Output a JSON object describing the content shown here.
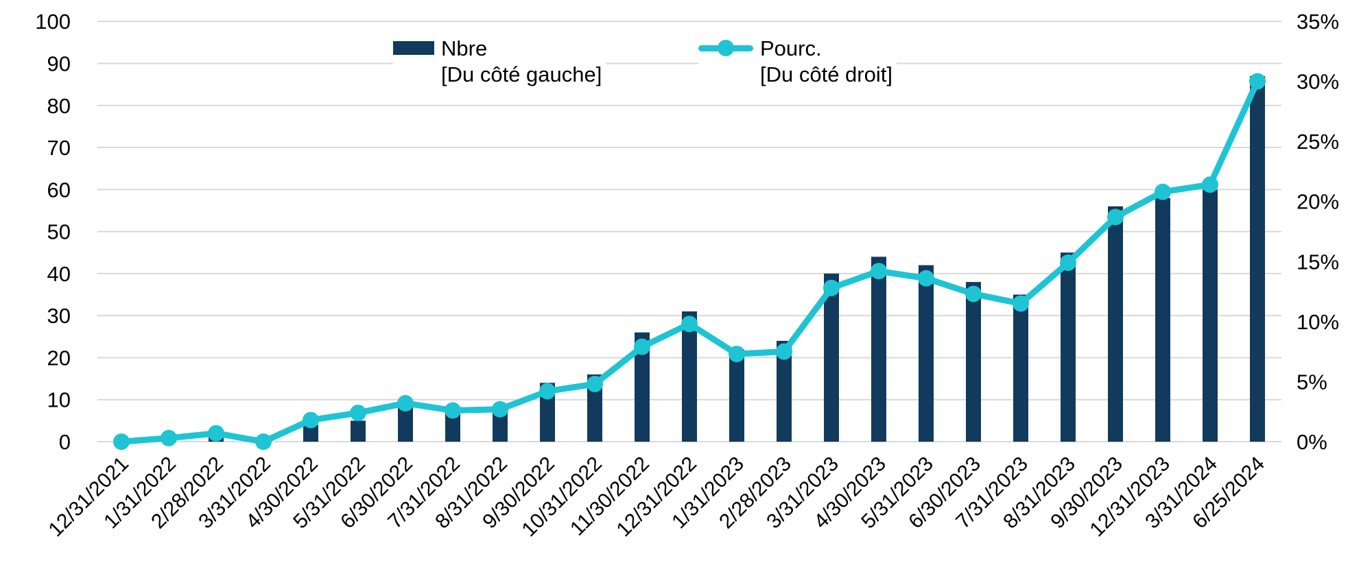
{
  "chart_data": {
    "type": "combo-bar-line-dual-axis",
    "title": "",
    "categories": [
      "12/31/2021",
      "1/31/2022",
      "2/28/2022",
      "3/31/2022",
      "4/30/2022",
      "5/31/2022",
      "6/30/2022",
      "7/31/2022",
      "8/31/2022",
      "9/30/2022",
      "10/31/2022",
      "11/30/2022",
      "12/31/2022",
      "1/31/2023",
      "2/28/2023",
      "3/31/2023",
      "4/30/2023",
      "5/31/2023",
      "6/30/2023",
      "7/31/2023",
      "8/31/2023",
      "9/30/2023",
      "12/31/2023",
      "3/31/2024",
      "6/25/2024"
    ],
    "series": [
      {
        "name": "Nbre",
        "legend_note": "[Du côté gauche]",
        "type": "bar",
        "axis": "left",
        "color": "#123A5C",
        "values": [
          0,
          1,
          2,
          0,
          4,
          5,
          10,
          8,
          8,
          14,
          16,
          26,
          31,
          22,
          24,
          40,
          44,
          42,
          38,
          35,
          45,
          56,
          58,
          60,
          87
        ]
      },
      {
        "name": "Pourc.",
        "legend_note": "[Du côté droit]",
        "type": "line",
        "axis": "right",
        "color": "#1EC4D4",
        "values": [
          0,
          0.3,
          0.7,
          0,
          1.8,
          2.4,
          3.2,
          2.6,
          2.7,
          4.2,
          4.8,
          7.9,
          9.8,
          7.3,
          7.5,
          12.8,
          14.2,
          13.6,
          12.3,
          11.5,
          14.9,
          18.7,
          20.8,
          21.4,
          30
        ]
      }
    ],
    "left_axis": {
      "min": 0,
      "max": 100,
      "step": 10,
      "ticks": [
        "0",
        "10",
        "20",
        "30",
        "40",
        "50",
        "60",
        "70",
        "80",
        "90",
        "100"
      ]
    },
    "right_axis": {
      "min": 0,
      "max": 35,
      "step": 5,
      "suffix": "%",
      "ticks": [
        "0%",
        "5%",
        "10%",
        "15%",
        "20%",
        "25%",
        "30%",
        "35%"
      ]
    },
    "grid": true,
    "legend_position": "top-center",
    "gridline_color": "#D9D9D9",
    "text_color": "#000000"
  }
}
